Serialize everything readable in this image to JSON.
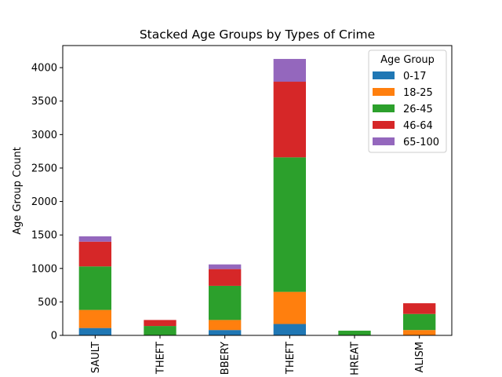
{
  "chart_data": {
    "type": "bar",
    "stacked": true,
    "title": "Stacked Age Groups by Types of Crime",
    "xlabel": "",
    "ylabel": "Age Group Count",
    "ylim": [
      0,
      4330
    ],
    "yticks": [
      0,
      500,
      1000,
      1500,
      2000,
      2500,
      3000,
      3500,
      4000
    ],
    "categories": [
      "SAULT",
      "THEFT",
      "BBERY",
      "THEFT",
      "HREAT",
      "ALISM"
    ],
    "series": [
      {
        "name": "0-17",
        "color": "#1f77b4",
        "values": [
          110,
          0,
          80,
          170,
          0,
          0
        ]
      },
      {
        "name": "18-25",
        "color": "#ff7f0e",
        "values": [
          270,
          0,
          150,
          480,
          0,
          80
        ]
      },
      {
        "name": "26-45",
        "color": "#2ca02c",
        "values": [
          650,
          140,
          510,
          2010,
          70,
          240
        ]
      },
      {
        "name": "46-64",
        "color": "#d62728",
        "values": [
          370,
          90,
          250,
          1130,
          0,
          160
        ]
      },
      {
        "name": "65-100",
        "color": "#9467bd",
        "values": [
          80,
          0,
          70,
          340,
          0,
          0
        ]
      }
    ],
    "legend": {
      "title": "Age Group",
      "placement": "top-right"
    },
    "grid": false
  }
}
